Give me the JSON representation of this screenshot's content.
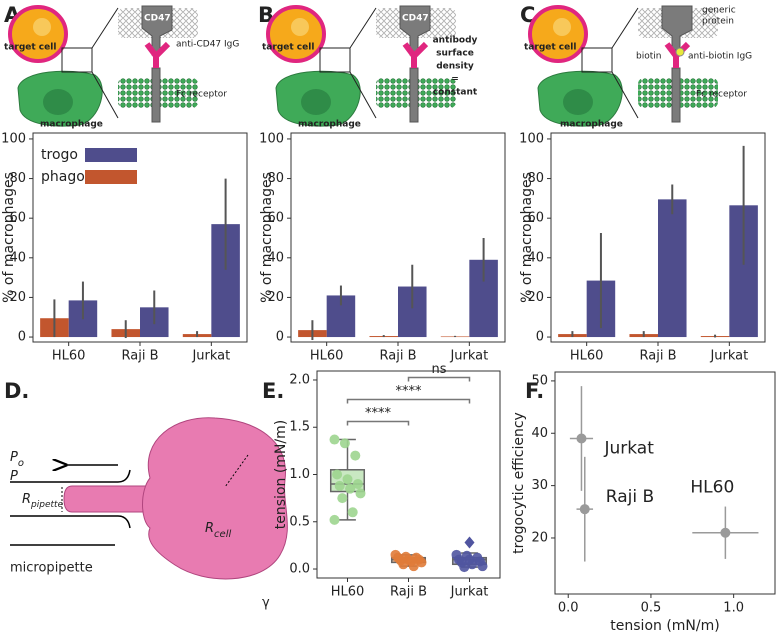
{
  "panel_labels": [
    "A.",
    "B.",
    "C.",
    "D.",
    "E.",
    "F."
  ],
  "schematics": [
    {
      "target": "target cell",
      "macrophage": "macrophage",
      "protein": "CD47",
      "antibody": "anti-CD47 IgG",
      "receptor": "Fc receptor"
    },
    {
      "target": "target cell",
      "macrophage": "macrophage",
      "protein": "CD47",
      "note": [
        "antibody",
        "surface",
        "density",
        "=",
        "constant"
      ]
    },
    {
      "target": "target cell",
      "macrophage": "macrophage",
      "protein": [
        "generic",
        "protein"
      ],
      "ligand": "biotin",
      "antibody": "anti-biotin IgG",
      "receptor": "Fc receptor"
    }
  ],
  "micropipette": {
    "outside": {
      "main": "P",
      "sub": "o"
    },
    "inside": {
      "main": "P"
    },
    "pipette_radius": {
      "main": "R",
      "sub": "pipette"
    },
    "cell_radius": {
      "main": "R",
      "sub": "cell"
    },
    "label": "micropipette",
    "tension": "γ"
  },
  "chart_data": [
    {
      "type": "bar",
      "categories": [
        "HL60",
        "Raji B",
        "Jurkat"
      ],
      "ylabel": "% of macrophages",
      "series": [
        {
          "name": "trogo",
          "color": "#4f4d8c",
          "values": [
            18.5,
            15,
            57
          ],
          "errors": [
            9.5,
            8.5,
            23
          ]
        },
        {
          "name": "phago",
          "color": "#c2562e",
          "values": [
            9.5,
            4,
            1.5
          ],
          "errors": [
            9.5,
            4.5,
            1.5
          ]
        }
      ],
      "ylim": [
        -2.5,
        103
      ],
      "yticks": [
        0,
        20,
        40,
        60,
        80,
        100
      ],
      "legend": "upper left"
    },
    {
      "type": "bar",
      "categories": [
        "HL60",
        "Raji B",
        "Jurkat"
      ],
      "ylabel": "% of macrophages",
      "series": [
        {
          "color": "#4f4d8c",
          "values": [
            21,
            25.5,
            39
          ],
          "errors": [
            5,
            11,
            11
          ]
        },
        {
          "color": "#c2562e",
          "values": [
            3.5,
            0.5,
            0.3
          ],
          "errors": [
            5,
            0.5,
            0.3
          ]
        }
      ],
      "ylim": [
        -2.5,
        103
      ],
      "yticks": [
        0,
        20,
        40,
        60,
        80,
        100
      ]
    },
    {
      "type": "bar",
      "categories": [
        "HL60",
        "Raji B",
        "Jurkat"
      ],
      "ylabel": "% of macrophages",
      "series": [
        {
          "color": "#4f4d8c",
          "values": [
            28.5,
            69.5,
            66.5
          ],
          "errors": [
            24,
            7.5,
            30
          ]
        },
        {
          "color": "#c2562e",
          "values": [
            1.5,
            1.5,
            0.5
          ],
          "errors": [
            1.5,
            1.5,
            0.7
          ]
        }
      ],
      "ylim": [
        -2.5,
        103
      ],
      "yticks": [
        0,
        20,
        40,
        60,
        80,
        100
      ]
    },
    {
      "type": "box",
      "categories": [
        "HL60",
        "Raji B",
        "Jurkat"
      ],
      "ylabel": "tension (mN/m)",
      "colors": [
        "#9dd58f",
        "#e07b39",
        "#5055a0"
      ],
      "boxes": [
        {
          "whislo": 0.52,
          "q1": 0.82,
          "med": 0.9,
          "q3": 1.05,
          "whishi": 1.37
        },
        {
          "whislo": 0.03,
          "q1": 0.07,
          "med": 0.1,
          "q3": 0.12,
          "whishi": 0.15
        },
        {
          "whislo": 0.02,
          "q1": 0.05,
          "med": 0.1,
          "q3": 0.12,
          "whishi": 0.17
        }
      ],
      "points": [
        [
          1.37,
          1.33,
          1.2,
          1.0,
          0.95,
          0.9,
          0.88,
          0.85,
          0.8,
          0.75,
          0.6,
          0.52
        ],
        [
          0.15,
          0.13,
          0.12,
          0.12,
          0.1,
          0.1,
          0.09,
          0.08,
          0.07,
          0.05,
          0.03
        ],
        [
          0.15,
          0.14,
          0.12,
          0.1,
          0.1,
          0.08,
          0.07,
          0.05,
          0.03,
          0.02
        ]
      ],
      "outliers": [
        [],
        [],
        [
          0.28
        ]
      ],
      "annotations": [
        {
          "text": "****",
          "groups": [
            0,
            1
          ]
        },
        {
          "text": "****",
          "groups": [
            0,
            2
          ]
        },
        {
          "text": "ns",
          "groups": [
            1,
            2
          ]
        }
      ],
      "ylim": [
        -0.095,
        2.095
      ],
      "yticks": [
        {
          "value": 0,
          "label": "0.0"
        },
        {
          "value": 0.5,
          "label": "0.5"
        },
        {
          "value": 1,
          "label": "1.0"
        },
        {
          "value": 1.5,
          "label": "1.5"
        },
        {
          "value": 2,
          "label": "2.0"
        }
      ]
    },
    {
      "type": "scatter",
      "xlabel": "tension (mN/m)",
      "ylabel": "trogocytic efficiency",
      "series": [
        {
          "color": "#9a9a9a",
          "labels": [
            "Jurkat",
            "Raji B",
            "HL60"
          ],
          "x": [
            0.08,
            0.1,
            0.95
          ],
          "values": [
            39,
            25.5,
            21
          ],
          "xerr": [
            0.07,
            0.05,
            0.2
          ],
          "yerr": [
            10,
            10,
            5
          ]
        }
      ],
      "xlim": [
        -0.08,
        1.25
      ],
      "xticks": [
        {
          "value": 0,
          "label": "0.0"
        },
        {
          "value": 0.5,
          "label": "0.5"
        },
        {
          "value": 1,
          "label": "1.0"
        }
      ],
      "ylim": [
        9.3,
        51.7
      ],
      "yticks": [
        20,
        30,
        40,
        50
      ]
    }
  ]
}
